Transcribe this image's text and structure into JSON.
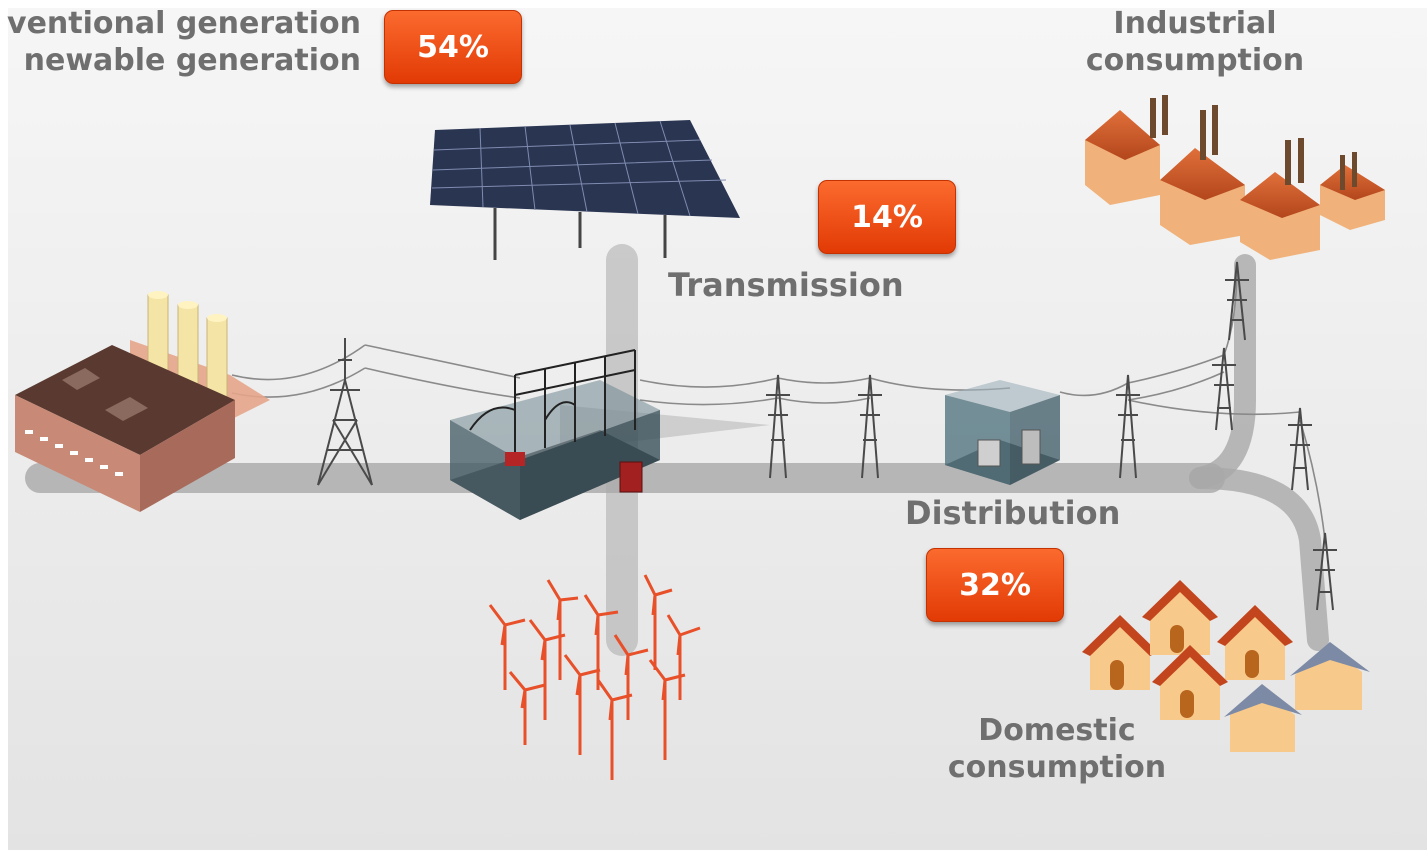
{
  "labels": {
    "generation_line1": "ventional generation",
    "generation_line2": "newable generation",
    "transmission": "Transmission",
    "distribution": "Distribution",
    "industrial_line1": "Industrial",
    "industrial_line2": "consumption",
    "domestic_line1": "Domestic",
    "domestic_line2": "consumption"
  },
  "badges": {
    "generation": "54%",
    "transmission": "14%",
    "distribution": "32%"
  },
  "colors": {
    "badge": "#ea4b12",
    "label_text": "#6f6f6f",
    "power_path": "#a9a9a9",
    "background": "#ececec"
  }
}
